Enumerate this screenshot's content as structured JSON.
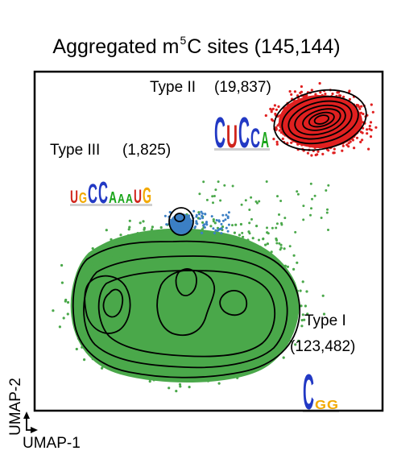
{
  "title": {
    "prefix": "Aggregated m",
    "superscript": "5",
    "suffix": "C sites (145,144)"
  },
  "axes": {
    "xlabel": "UMAP-1",
    "ylabel": "UMAP-2",
    "ticks": "none"
  },
  "chart_data": {
    "type": "scatter",
    "title": "Aggregated m5C sites (145,144)",
    "xlabel": "UMAP-1",
    "ylabel": "UMAP-2",
    "grid": false,
    "legend": "none",
    "series": [
      {
        "name": "Type I",
        "label_text": "Type I",
        "count_text": "(123,482)",
        "count": 123482,
        "color": "#4aa84a",
        "motif": "C GG",
        "motif_letters": [
          "C",
          "G",
          "G"
        ],
        "motif_colors": [
          "#2239c4",
          "#f2a900",
          "#f2a900"
        ]
      },
      {
        "name": "Type II",
        "label_text": "Type II",
        "count_text": "(19,837)",
        "count": 19837,
        "color": "#e02020",
        "motif": "CUCCA",
        "motif_letters": [
          "C",
          "U",
          "C",
          "C",
          "A"
        ],
        "motif_colors": [
          "#2239c4",
          "#d0241b",
          "#2239c4",
          "#2239c4",
          "#18a418"
        ]
      },
      {
        "name": "Type III",
        "label_text": "Type III",
        "count_text": "(1,825)",
        "count": 1825,
        "color": "#3b7fc4",
        "motif": "UGCCAAAUG",
        "motif_letters": [
          "U",
          "G",
          "C",
          "C",
          "A",
          "A",
          "A",
          "U",
          "G"
        ],
        "motif_colors": [
          "#d0241b",
          "#f2a900",
          "#2239c4",
          "#2239c4",
          "#18a418",
          "#18a418",
          "#18a418",
          "#d0241b",
          "#f2a900"
        ]
      }
    ]
  }
}
